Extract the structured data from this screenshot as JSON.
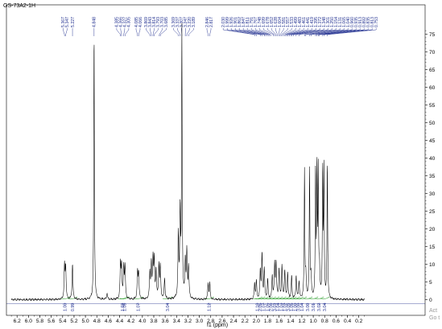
{
  "chart_data": {
    "type": "line",
    "title": "GS-73A2-1H",
    "xlabel": "f1 (ppm)",
    "ylabel": "",
    "xlim": [
      6.3,
      0.1
    ],
    "ylim": [
      -2,
      76
    ],
    "x_ticks": [
      "6.2",
      "6.0",
      "5.8",
      "5.6",
      "5.4",
      "5.2",
      "5.0",
      "4.8",
      "4.6",
      "4.4",
      "4.2",
      "4.0",
      "3.8",
      "3.6",
      "3.4",
      "3.2",
      "3.0",
      "2.8",
      "2.6",
      "2.4",
      "2.2",
      "2.0",
      "1.8",
      "1.6",
      "1.4",
      "1.2",
      "1.0",
      "0.8",
      "0.6",
      "0.4",
      "0.2"
    ],
    "y_ticks": [
      "0",
      "5",
      "10",
      "15",
      "20",
      "25",
      "30",
      "35",
      "40",
      "45",
      "50",
      "55",
      "60",
      "65",
      "70",
      "75"
    ],
    "grid": false,
    "series": [
      {
        "peaks": [
          {
            "x": 5.367,
            "y": 9.5
          },
          {
            "x": 5.347,
            "y": 9.0
          },
          {
            "x": 5.227,
            "y": 10.0
          },
          {
            "x": 4.848,
            "y": 76.0
          },
          {
            "x": 4.62,
            "y": 1.8
          },
          {
            "x": 4.385,
            "y": 9.5
          },
          {
            "x": 4.366,
            "y": 9.2
          },
          {
            "x": 4.327,
            "y": 9.0
          },
          {
            "x": 4.305,
            "y": 8.8
          },
          {
            "x": 4.085,
            "y": 7.5
          },
          {
            "x": 4.066,
            "y": 7.2
          },
          {
            "x": 3.869,
            "y": 7.5
          },
          {
            "x": 3.843,
            "y": 9.5
          },
          {
            "x": 3.814,
            "y": 11.0
          },
          {
            "x": 3.793,
            "y": 10.5
          },
          {
            "x": 3.76,
            "y": 8.0
          },
          {
            "x": 3.71,
            "y": 9.5
          },
          {
            "x": 3.685,
            "y": 9.0
          },
          {
            "x": 3.61,
            "y": 6.0
          },
          {
            "x": 3.369,
            "y": 17.5
          },
          {
            "x": 3.337,
            "y": 24.0
          },
          {
            "x": 3.307,
            "y": 76.0
          },
          {
            "x": 3.247,
            "y": 10.5
          },
          {
            "x": 3.22,
            "y": 13.0
          },
          {
            "x": 3.189,
            "y": 9.0
          },
          {
            "x": 2.846,
            "y": 4.5
          },
          {
            "x": 2.817,
            "y": 4.5
          },
          {
            "x": 2.03,
            "y": 4.5
          },
          {
            "x": 1.999,
            "y": 5.0
          },
          {
            "x": 1.93,
            "y": 8.0
          },
          {
            "x": 1.9,
            "y": 12.5
          },
          {
            "x": 1.86,
            "y": 8.5
          },
          {
            "x": 1.8,
            "y": 5.5
          },
          {
            "x": 1.72,
            "y": 6.5
          },
          {
            "x": 1.678,
            "y": 9.5
          },
          {
            "x": 1.652,
            "y": 10.0
          },
          {
            "x": 1.6,
            "y": 8.5
          },
          {
            "x": 1.55,
            "y": 9.5
          },
          {
            "x": 1.5,
            "y": 8.0
          },
          {
            "x": 1.45,
            "y": 7.5
          },
          {
            "x": 1.38,
            "y": 6.5
          },
          {
            "x": 1.3,
            "y": 6.5
          },
          {
            "x": 1.25,
            "y": 5.0
          },
          {
            "x": 1.154,
            "y": 36.5
          },
          {
            "x": 1.131,
            "y": 6.0
          },
          {
            "x": 1.065,
            "y": 36.5
          },
          {
            "x": 1.04,
            "y": 6.0
          },
          {
            "x": 0.96,
            "y": 35.5
          },
          {
            "x": 0.935,
            "y": 36.0
          },
          {
            "x": 0.913,
            "y": 34.5
          },
          {
            "x": 0.892,
            "y": 8.0
          },
          {
            "x": 0.835,
            "y": 36.0
          },
          {
            "x": 0.813,
            "y": 35.5
          },
          {
            "x": 0.753,
            "y": 38.5
          }
        ]
      }
    ],
    "peak_labels": [
      "5.367",
      "5.347",
      "5.227",
      "4.848",
      "4.385",
      "4.366",
      "4.327",
      "4.305",
      "4.085",
      "4.066",
      "3.869",
      "3.843",
      "3.814",
      "3.793",
      "3.703",
      "3.685",
      "3.369",
      "3.337",
      "3.307",
      "3.247",
      "3.220",
      "3.189",
      "2.846",
      "2.817",
      "2.030",
      "1.999",
      "1.926",
      "1.901",
      "1.862",
      "1.847",
      "1.811",
      "1.791",
      "1.767",
      "1.748",
      "1.699",
      "1.678",
      "1.652",
      "1.628",
      "1.604",
      "1.581",
      "1.557",
      "1.533",
      "1.499",
      "1.483",
      "1.461",
      "1.441",
      "1.419",
      "1.395",
      "1.372",
      "1.348",
      "1.301",
      "1.250",
      "1.154",
      "1.131",
      "1.065",
      "1.040",
      "0.960",
      "0.935",
      "0.913",
      "0.892",
      "0.835",
      "0.813",
      "0.753"
    ],
    "integrals": [
      {
        "x": 5.357,
        "label": "1.00"
      },
      {
        "x": 5.227,
        "label": "0.99"
      },
      {
        "x": 4.35,
        "label": "1.03"
      },
      {
        "x": 4.31,
        "label": "1.05"
      },
      {
        "x": 4.075,
        "label": "1.07"
      },
      {
        "x": 3.56,
        "label": "3.04"
      },
      {
        "x": 2.83,
        "label": "1.12"
      },
      {
        "x": 1.98,
        "label": "1.10"
      },
      {
        "x": 1.93,
        "label": "2.05"
      },
      {
        "x": 1.87,
        "label": "1.07"
      },
      {
        "x": 1.8,
        "label": "1.05"
      },
      {
        "x": 1.74,
        "label": "2.06"
      },
      {
        "x": 1.68,
        "label": "3.03"
      },
      {
        "x": 1.62,
        "label": "1.04"
      },
      {
        "x": 1.56,
        "label": "1.03"
      },
      {
        "x": 1.5,
        "label": "1.02"
      },
      {
        "x": 1.44,
        "label": "3.05"
      },
      {
        "x": 1.38,
        "label": "1.05"
      },
      {
        "x": 1.32,
        "label": "1.00"
      },
      {
        "x": 1.26,
        "label": "3.00"
      },
      {
        "x": 1.2,
        "label": "1.04"
      },
      {
        "x": 1.1,
        "label": "3.00"
      },
      {
        "x": 1.0,
        "label": "3.01"
      },
      {
        "x": 0.9,
        "label": "3.02"
      },
      {
        "x": 0.8,
        "label": "3.04"
      }
    ],
    "watermark": "Act\nGo t"
  }
}
